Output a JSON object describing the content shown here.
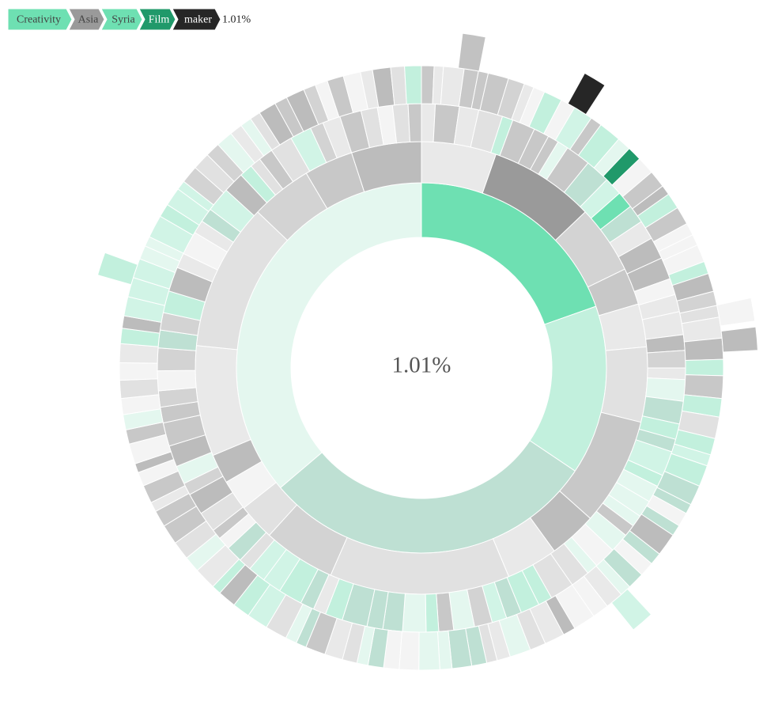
{
  "breadcrumb": {
    "items": [
      {
        "label": "Creativity",
        "color": "#6ee0b2",
        "text_color": "#444444"
      },
      {
        "label": "Asia",
        "color": "#9a9a9a",
        "text_color": "#444444"
      },
      {
        "label": "Syria",
        "color": "#6ee0b2",
        "text_color": "#444444"
      },
      {
        "label": "Film",
        "color": "#20996a",
        "text_color": "#ffffff"
      },
      {
        "label": "maker",
        "color": "#262626",
        "text_color": "#ffffff"
      }
    ],
    "percentage": "1.01%"
  },
  "center": {
    "percentage": "1.01%"
  },
  "chart_data": {
    "type": "sunburst",
    "title": "",
    "selected_path": [
      "Creativity",
      "Asia",
      "Syria",
      "Film",
      "maker"
    ],
    "selected_share_percent": 1.01,
    "palette": {
      "selected_root": "#6ee0b2",
      "selected_region": "#9a9a9a",
      "selected_country": "#6ee0b2",
      "selected_interest": "#20996a",
      "selected_leaf": "#262626"
    },
    "rings": [
      {
        "level": 1,
        "segments": [
          {
            "share": 19.6,
            "color": "#6ee0b2",
            "selected": true
          },
          {
            "share": 14.8,
            "color": "#c2f0dd"
          },
          {
            "share": 29.4,
            "color": "#bee0d3"
          },
          {
            "share": 36.2,
            "color": "#e4f7ef"
          }
        ]
      },
      {
        "level": 2,
        "segments": [
          {
            "share": 6.1,
            "color": "#e9e9e9"
          },
          {
            "share": 8.6,
            "color": "#9a9a9a",
            "selected": true
          },
          {
            "share": 5.6,
            "color": "#d3d3d3"
          },
          {
            "share": 3.0,
            "color": "#c8c8c8"
          },
          {
            "share": 3.5,
            "color": "#e9e9e9"
          },
          {
            "share": 6.1,
            "color": "#e1e1e1"
          },
          {
            "share": 8.8,
            "color": "#c8c8c8"
          },
          {
            "share": 3.9,
            "color": "#bcbcbc"
          },
          {
            "share": 4.2,
            "color": "#e9e9e9"
          },
          {
            "share": 14.7,
            "color": "#e1e1e1"
          },
          {
            "share": 5.9,
            "color": "#d3d3d3"
          },
          {
            "share": 3.0,
            "color": "#e1e1e1"
          },
          {
            "share": 2.5,
            "color": "#f4f4f4"
          },
          {
            "share": 2.4,
            "color": "#bcbcbc"
          },
          {
            "share": 9.0,
            "color": "#e9e9e9"
          },
          {
            "share": 12.0,
            "color": "#e1e1e1"
          },
          {
            "share": 5.0,
            "color": "#d3d3d3"
          },
          {
            "share": 4.0,
            "color": "#c8c8c8"
          },
          {
            "share": 5.7,
            "color": "#bcbcbc"
          }
        ]
      },
      {
        "level": 3,
        "seed": 7,
        "count": 92,
        "selected_index": 12,
        "selected_color": "#6ee0b2",
        "highlight_colors": [
          "#e4f7ef",
          "#c2f0dd",
          "#d1f4e6",
          "#bee0d3"
        ],
        "neutral_colors": [
          "#f4f4f4",
          "#e9e9e9",
          "#e1e1e1",
          "#d3d3d3",
          "#c8c8c8",
          "#bcbcbc"
        ]
      },
      {
        "level": 4,
        "seed": 19,
        "count": 118,
        "selected_index": 15,
        "selected_color": "#20996a",
        "highlight_colors": [
          "#e4f7ef",
          "#c2f0dd",
          "#d1f4e6",
          "#bee0d3"
        ],
        "neutral_colors": [
          "#f4f4f4",
          "#e9e9e9",
          "#e1e1e1",
          "#d3d3d3",
          "#c8c8c8",
          "#bcbcbc"
        ]
      },
      {
        "level": 5,
        "segments": [
          {
            "angle_deg": 9,
            "color": "#c2c2c2"
          },
          {
            "angle_deg": 31,
            "color": "#262626",
            "selected": true
          },
          {
            "angle_deg": 80,
            "color": "#f4f4f4"
          },
          {
            "angle_deg": 85,
            "color": "#bcbcbc"
          },
          {
            "angle_deg": 139,
            "color": "#d1f4e6"
          },
          {
            "angle_deg": 288,
            "color": "#c2f0dd"
          }
        ]
      }
    ]
  }
}
